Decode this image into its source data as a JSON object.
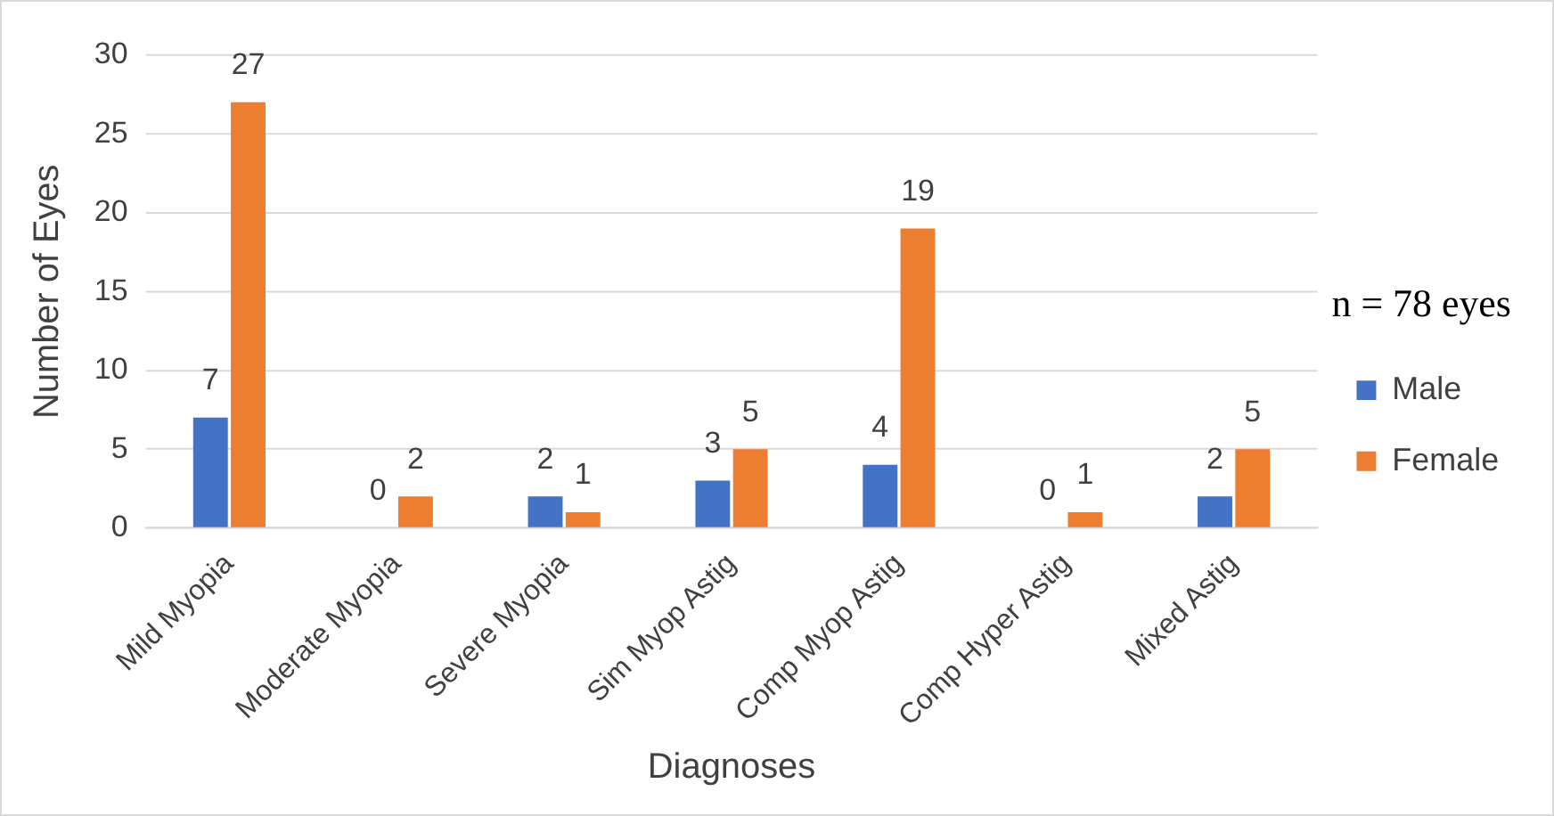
{
  "chart_data": {
    "type": "bar",
    "xlabel": "Diagnoses",
    "ylabel": "Number of Eyes",
    "categories": [
      "Mild Myopia",
      "Moderate Myopia",
      "Severe Myopia",
      "Sim Myop Astig",
      "Comp Myop Astig",
      "Comp Hyper Astig",
      "Mixed Astig"
    ],
    "series": [
      {
        "name": "Male",
        "color": "#4472c4",
        "values": [
          7,
          0,
          2,
          3,
          4,
          0,
          2
        ]
      },
      {
        "name": "Female",
        "color": "#ed7d31",
        "values": [
          27,
          2,
          1,
          5,
          19,
          1,
          5
        ]
      }
    ],
    "ylim": [
      0,
      30
    ],
    "yticks": [
      0,
      5,
      10,
      15,
      20,
      25,
      30
    ],
    "grid": "y",
    "legend": "right",
    "data_labels": true,
    "annotations": [
      "n = 78 eyes"
    ]
  }
}
